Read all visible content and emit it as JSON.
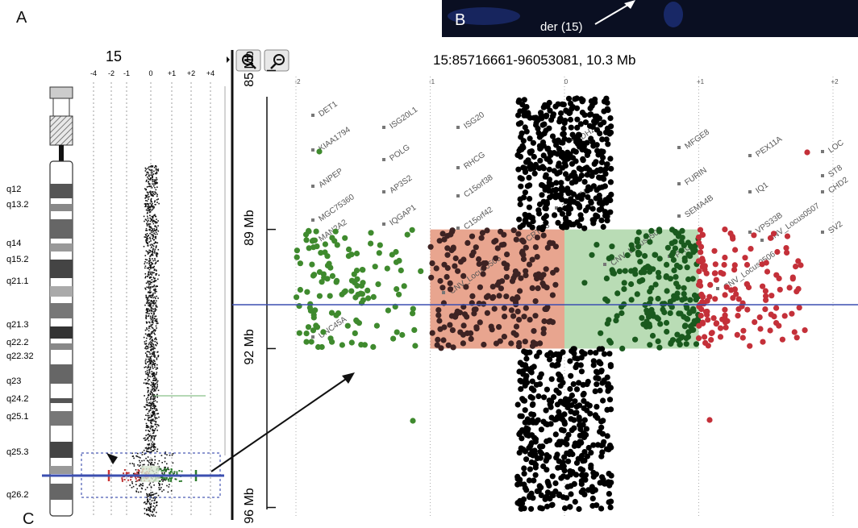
{
  "panels": {
    "a": "A",
    "b": "B",
    "c": "C"
  },
  "inset": {
    "label": "der (15)"
  },
  "chromosome": {
    "number": "15",
    "bands": [
      "q12",
      "q13.2",
      "q14",
      "q15.2",
      "q21.1",
      "q21.3",
      "q22.2",
      "q22.32",
      "q23",
      "q24.2",
      "q25.1",
      "q25.3",
      "q26.2"
    ]
  },
  "overview_axis": {
    "ticks": [
      "-4",
      "-2",
      "-1",
      "0",
      "+1",
      "+2",
      "+4"
    ]
  },
  "zoom": {
    "in_icon": "zoom-in-icon",
    "out_icon": "zoom-out-icon"
  },
  "detail": {
    "title": "15:85716661-96053081, 10.3 Mb",
    "x_ticks": [
      "-2",
      "-1",
      "0",
      "+1",
      "+2"
    ],
    "y_ticks": [
      "85 Mb",
      "89 Mb",
      "92 Mb",
      "96 Mb"
    ]
  },
  "genes": [
    "DET1",
    "KIAA1794",
    "ANPEP",
    "MGC75360",
    "MAN2A2",
    "ISG20L1",
    "POLG",
    "AP3S2",
    "IQGAP1",
    "UNC45A",
    "ISG20",
    "RHCG",
    "C15orf38",
    "C15orf42",
    "IDH2",
    "CRTC3",
    "ZNF774",
    "MFGE8",
    "FURIN",
    "SEMA4B",
    "PEX11A",
    "IQ1",
    "VPS33B",
    "CHD2",
    "ST8",
    "SV2",
    "PRC1",
    "LOC",
    "CNV_Locus0505",
    "CNV_Locus0506",
    "CNV_Locus0507",
    "CNV_Locus0508"
  ],
  "chart_data": {
    "type": "scatter",
    "title": "15:85716661-96053081, 10.3 Mb",
    "x_axis": {
      "ticks": [
        -2,
        -1,
        0,
        1,
        2
      ],
      "range": [
        -2,
        2
      ]
    },
    "y_axis": {
      "ticks_mb": [
        85,
        89,
        92,
        96
      ],
      "range_mb": [
        85.7,
        96.05
      ]
    },
    "regions": [
      {
        "color": "#e8a58f",
        "x": [
          -1,
          0
        ],
        "y_mb": [
          89,
          92
        ]
      },
      {
        "color": "#b9dcb5",
        "x": [
          0,
          1
        ],
        "y_mb": [
          89,
          92
        ]
      }
    ],
    "series": [
      {
        "color": "#000000",
        "x_range": [
          -0.35,
          0.35
        ],
        "y_mb": [
          85.7,
          89
        ]
      },
      {
        "color": "#3e2323",
        "x_range": [
          -1,
          -0.05
        ],
        "y_mb": [
          89,
          92
        ]
      },
      {
        "color": "#1a5a1e",
        "x_range": [
          0.05,
          1
        ],
        "y_mb": [
          89,
          92
        ]
      },
      {
        "color": "#3f8a2e",
        "x_range": [
          -2,
          -1
        ],
        "y_mb": [
          89,
          92
        ]
      },
      {
        "color": "#c43039",
        "x_range": [
          1,
          1.8
        ],
        "y_mb": [
          89,
          92
        ]
      },
      {
        "color": "#000000",
        "x_range": [
          -0.35,
          0.35
        ],
        "y_mb": [
          92,
          96.05
        ]
      }
    ],
    "cursor_mb": 90.6,
    "grid": "dashed vertical at ticks"
  }
}
